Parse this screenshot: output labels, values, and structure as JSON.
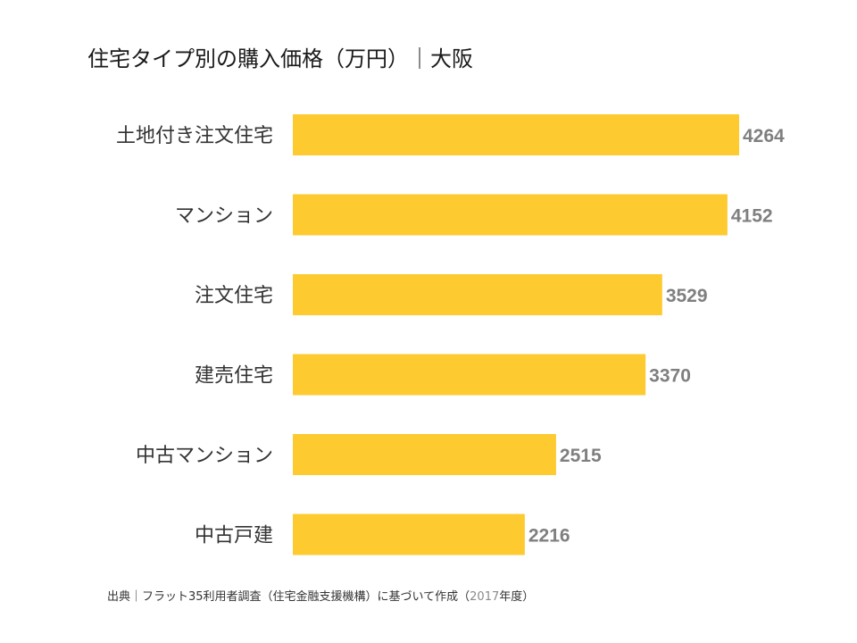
{
  "chart_data": {
    "type": "bar",
    "orientation": "horizontal",
    "title": "住宅タイプ別の購入価格（万円）｜大阪",
    "categories": [
      "土地付き注文住宅",
      "マンション",
      "注文住宅",
      "建売住宅",
      "中古マンション",
      "中古戸建"
    ],
    "values": [
      4264,
      4152,
      3529,
      3370,
      2515,
      2216
    ],
    "bar_color": "#FDCA30",
    "value_label_color": "#7F7F7F",
    "gridlines": false,
    "legend": "none"
  },
  "source": {
    "prefix": "出典｜フラット35利用者調査（住宅金融支援機構）に基づいて作成（",
    "year": "2017",
    "suffix": "年度）"
  }
}
